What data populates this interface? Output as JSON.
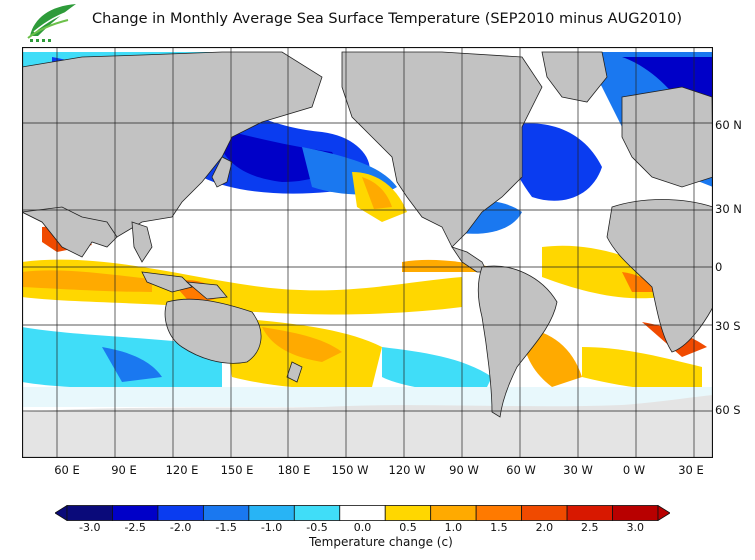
{
  "title": "Change in Monthly Average Sea Surface Temperature (SEP2010 minus AUG2010)",
  "map": {
    "projection": "equirectangular",
    "center": "Pacific",
    "land_color": "#c2c2c2",
    "ice_color": "#e4e4e4",
    "grid": true
  },
  "lon_labels": [
    "60 E",
    "90 E",
    "120 E",
    "150 E",
    "180 E",
    "150 W",
    "120 W",
    "90 W",
    "60 W",
    "30 W",
    "0 W",
    "30 E"
  ],
  "lat_labels": [
    "60 N",
    "30 N",
    "0",
    "30 S",
    "60 S"
  ],
  "colorbar": {
    "label": "Temperature change  (c)",
    "ticks": [
      "-3.0",
      "-2.5",
      "-2.0",
      "-1.5",
      "-1.0",
      "-0.5",
      "0.0",
      "0.5",
      "1.0",
      "1.5",
      "2.0",
      "2.5",
      "3.0"
    ],
    "colors": [
      "#0a0a7a",
      "#0000c8",
      "#0a3cf0",
      "#1a78f0",
      "#28b4f5",
      "#40ddf8",
      "#ffffff",
      "#ffd700",
      "#ffaa00",
      "#ff7a00",
      "#f04a00",
      "#d81800",
      "#b80000"
    ]
  }
}
